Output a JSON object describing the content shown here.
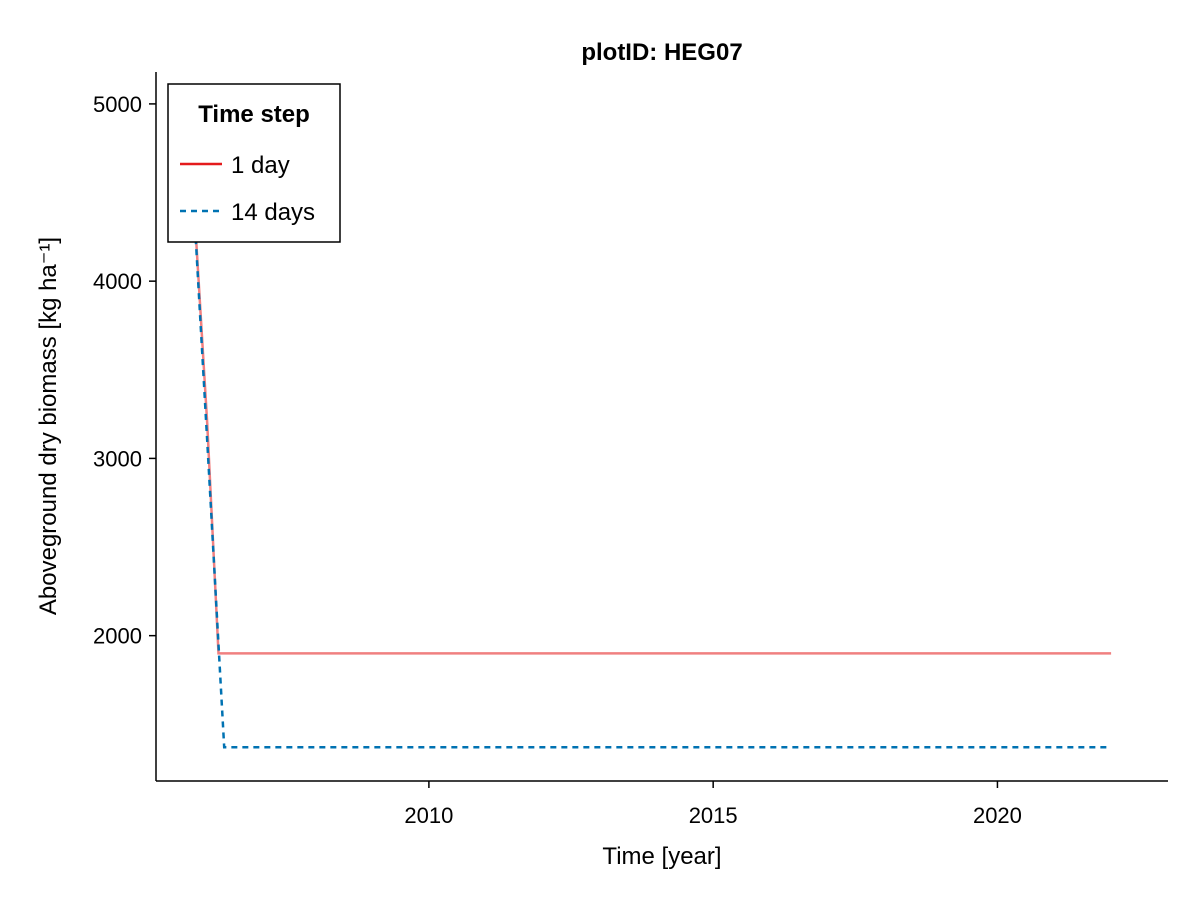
{
  "chart_data": {
    "type": "line",
    "title": "plotID: HEG07",
    "xlabel": "Time [year]",
    "ylabel": "Aboveground dry biomass [kg ha⁻¹]",
    "xlim": [
      2005.2,
      2023.0
    ],
    "ylim": [
      1180,
      5180
    ],
    "xticks": [
      2010,
      2015,
      2020
    ],
    "yticks": [
      2000,
      3000,
      4000,
      5000
    ],
    "grid": false,
    "legend": {
      "title": "Time step",
      "position": "top-left",
      "entries": [
        "1 day",
        "14 days"
      ]
    },
    "series": [
      {
        "name": "1 day",
        "color": "#f08080",
        "legend_color": "#e41a1c",
        "dash": "solid",
        "x": [
          2005.8,
          2006.1,
          2006.3,
          2022.0
        ],
        "y": [
          4800,
          3200,
          1900,
          1900
        ]
      },
      {
        "name": "14 days",
        "color": "#0072b2",
        "legend_color": "#0072b2",
        "dash": "dashed",
        "x": [
          2005.8,
          2006.1,
          2006.4,
          2022.0
        ],
        "y": [
          4800,
          3100,
          1370,
          1370
        ]
      }
    ]
  }
}
